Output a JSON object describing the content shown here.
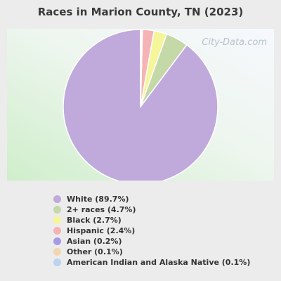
{
  "chart_data": {
    "type": "pie",
    "title": "Races in Marion County, TN (2023)",
    "watermark": "City-Data.com",
    "legend_position": "bottom",
    "slices": [
      {
        "label": "White (89.7%)",
        "value": 89.7,
        "color": "#c0a9db"
      },
      {
        "label": "2+ races (4.7%)",
        "value": 4.7,
        "color": "#c5d8a8"
      },
      {
        "label": "Black (2.7%)",
        "value": 2.7,
        "color": "#f5f59a"
      },
      {
        "label": "Hispanic (2.4%)",
        "value": 2.4,
        "color": "#f5b3b6"
      },
      {
        "label": "Asian (0.2%)",
        "value": 0.2,
        "color": "#a59be6"
      },
      {
        "label": "Other (0.1%)",
        "value": 0.1,
        "color": "#f3d6b0"
      },
      {
        "label": "American Indian and Alaska Native (0.1%)",
        "value": 0.1,
        "color": "#b9d3f0"
      }
    ]
  }
}
